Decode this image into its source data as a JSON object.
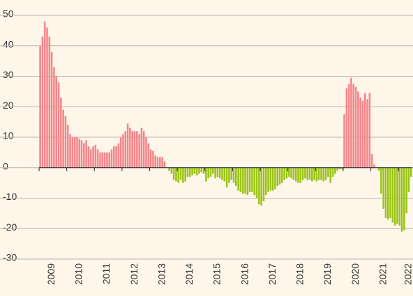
{
  "chart_data": {
    "type": "bar",
    "categories": [
      null,
      null,
      null,
      null,
      null,
      "2009",
      null,
      null,
      null,
      null,
      null,
      null,
      null,
      null,
      null,
      null,
      null,
      "2010",
      null,
      null,
      null,
      null,
      null,
      null,
      null,
      null,
      null,
      null,
      null,
      "2011",
      null,
      null,
      null,
      null,
      null,
      null,
      null,
      null,
      null,
      null,
      null,
      "2012",
      null,
      null,
      null,
      null,
      null,
      null,
      null,
      null,
      null,
      null,
      null,
      "2013",
      null,
      null,
      null,
      null,
      null,
      null,
      null,
      null,
      null,
      null,
      null,
      "2014",
      null,
      null,
      null,
      null,
      null,
      null,
      null,
      null,
      null,
      null,
      null,
      "2015",
      null,
      null,
      null,
      null,
      null,
      null,
      null,
      null,
      null,
      null,
      null,
      "2016",
      null,
      null,
      null,
      null,
      null,
      null,
      null,
      null,
      null,
      null,
      null,
      "2017",
      null,
      null,
      null,
      null,
      null,
      null,
      null,
      null,
      null,
      null,
      null,
      "2018",
      null,
      null,
      null,
      null,
      null,
      null,
      null,
      null,
      null,
      null,
      null,
      "2019",
      null,
      null,
      null,
      null,
      null,
      null,
      null,
      null,
      null,
      null,
      null,
      "2020",
      null,
      null,
      null,
      null,
      null,
      null,
      null,
      null,
      null,
      null,
      null,
      "2021",
      null,
      null,
      null,
      null,
      null,
      null,
      null,
      null,
      null,
      null,
      "2022",
      null
    ],
    "values": [
      40,
      43,
      48,
      46,
      43,
      38,
      33,
      30,
      28,
      23,
      19,
      17,
      14,
      11,
      10,
      10,
      10,
      9.5,
      9,
      8,
      9,
      7,
      6,
      7,
      7.5,
      6,
      5,
      5,
      5,
      5,
      5,
      6,
      7,
      7,
      8,
      10,
      11,
      12,
      14.5,
      13,
      12,
      12,
      12,
      11,
      13,
      12,
      10,
      8,
      6,
      5.5,
      4,
      3.5,
      3.5,
      3.5,
      2,
      0,
      -1,
      -2,
      -4,
      -4.5,
      -5,
      -4,
      -5,
      -4.5,
      -3,
      -3,
      -2.5,
      -2,
      -2.5,
      -2,
      -1.5,
      -2,
      -4.5,
      -3.5,
      -3,
      -2,
      -3.5,
      -3,
      -3.5,
      -4,
      -4.5,
      -6.5,
      -5,
      -4,
      -5,
      -6,
      -7.5,
      -8,
      -8.5,
      -8.5,
      -9,
      -8,
      -8,
      -9,
      -10,
      -12,
      -12.5,
      -11,
      -9,
      -8,
      -7.5,
      -7.5,
      -7,
      -6,
      -5.5,
      -5,
      -4,
      -3.5,
      -3,
      -3.5,
      -4,
      -4.5,
      -5,
      -5,
      -4,
      -3.5,
      -4,
      -4,
      -4.5,
      -4,
      -4.5,
      -4,
      -4,
      -4.5,
      -4,
      -3,
      -5,
      -3,
      -2,
      -1,
      -0.5,
      -0.5,
      17.5,
      26,
      27.5,
      29.5,
      27.5,
      26.5,
      25,
      23,
      22,
      24.5,
      22.5,
      24.5,
      4.5,
      1,
      0,
      -1,
      -8.5,
      -13.5,
      -16.5,
      -17,
      -16.5,
      -18,
      -19,
      -18.5,
      -19,
      -21,
      -20.5,
      -15,
      -8,
      -3
    ],
    "color_positive": "#f4878c",
    "color_negative": "#9cc41c",
    "ylim": [
      -30,
      50
    ],
    "yticks": [
      -30,
      -20,
      -10,
      0,
      10,
      20,
      30,
      40,
      50
    ],
    "grid": true
  }
}
